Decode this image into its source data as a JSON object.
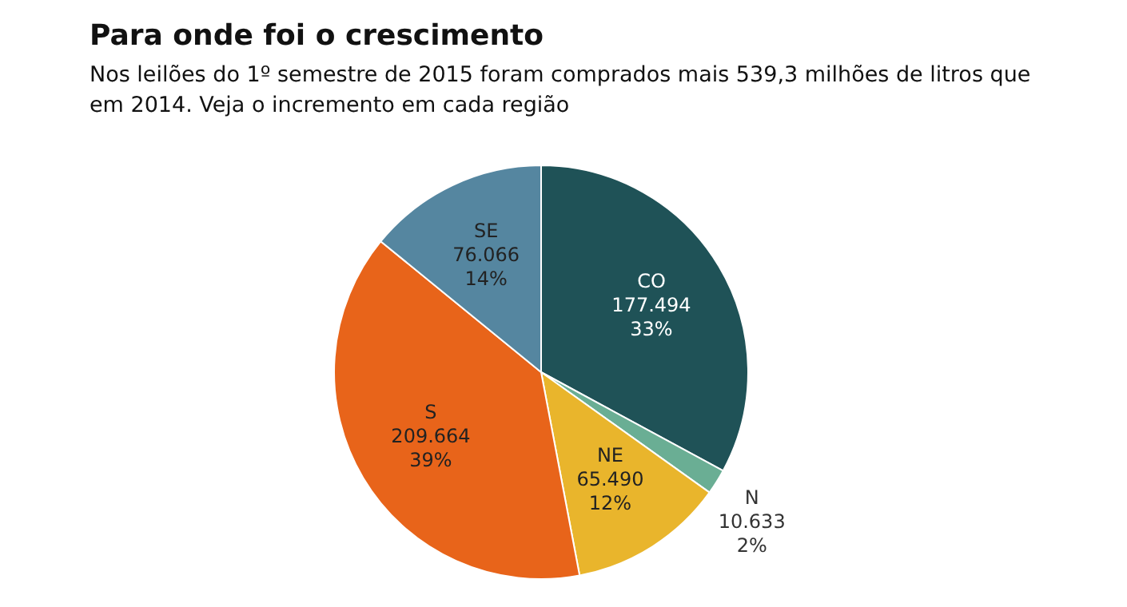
{
  "chart_data": {
    "type": "pie",
    "title": "Para onde foi o crescimento",
    "subtitle": "Nos leilões do 1º semestre de 2015 foram comprados mais 539,3 milhões de litros que em 2014. Veja o incremento em cada região",
    "categories": [
      "CO",
      "N",
      "NE",
      "S",
      "SE"
    ],
    "values": [
      177.494,
      10.633,
      65.49,
      209.664,
      76.066
    ],
    "colors": [
      "#1f5257",
      "#6aae94",
      "#e9b52c",
      "#e8641a",
      "#5586a0"
    ],
    "value_labels": [
      "177.494\n33%",
      "10.633\n2%",
      "65.490\n12%",
      "209.664\n39%",
      "76.066\n14%"
    ],
    "legend": false
  }
}
